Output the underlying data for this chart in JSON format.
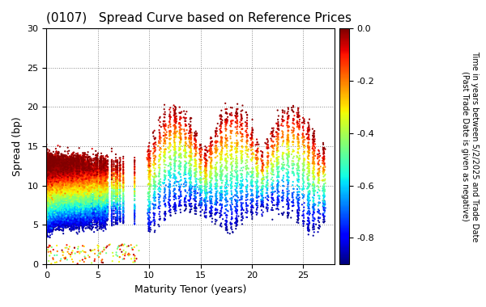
{
  "title": "(0107)   Spread Curve based on Reference Prices",
  "xlabel": "Maturity Tenor (years)",
  "ylabel": "Spread (bp)",
  "colorbar_label_line1": "Time in years between 5/2/2025 and Trade Date",
  "colorbar_label_line2": "(Past Trade Date is given as negative)",
  "xlim": [
    0,
    28
  ],
  "ylim": [
    0,
    30
  ],
  "xticks": [
    0,
    5,
    10,
    15,
    20,
    25
  ],
  "yticks": [
    0,
    5,
    10,
    15,
    20,
    25,
    30
  ],
  "cmap": "jet",
  "clim": [
    -0.9,
    0.0
  ],
  "cticks": [
    0.0,
    -0.2,
    -0.4,
    -0.6,
    -0.8
  ],
  "background_color": "#ffffff",
  "grid_color": "#888888",
  "dot_size": 2.5,
  "seed": 42
}
